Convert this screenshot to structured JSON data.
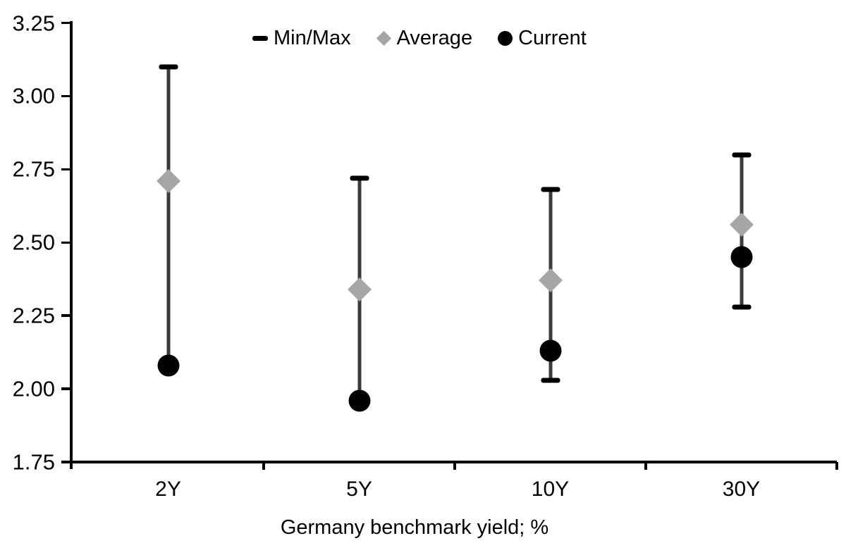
{
  "chart_data": {
    "type": "range-dot",
    "title": "",
    "xlabel": "Germany benchmark yield; %",
    "ylabel": "",
    "categories": [
      "2Y",
      "5Y",
      "10Y",
      "30Y"
    ],
    "series": [
      {
        "name": "Min/Max-max",
        "values": [
          3.1,
          2.72,
          2.68,
          2.8
        ]
      },
      {
        "name": "Min/Max-min",
        "values": [
          2.08,
          1.96,
          2.03,
          2.28
        ]
      },
      {
        "name": "Average",
        "values": [
          2.71,
          2.34,
          2.37,
          2.56
        ]
      },
      {
        "name": "Current",
        "values": [
          2.08,
          1.96,
          2.13,
          2.45
        ]
      }
    ],
    "ylim": [
      1.75,
      3.25
    ],
    "yticks": [
      3.25,
      3.0,
      2.75,
      2.5,
      2.25,
      2.0,
      1.75
    ],
    "grid": "off",
    "legend_position": "top-center",
    "legend": [
      {
        "label": "Min/Max",
        "marker": "dash"
      },
      {
        "label": "Average",
        "marker": "diamond"
      },
      {
        "label": "Current",
        "marker": "circle"
      }
    ],
    "colors": {
      "minmax": "#000000",
      "whisker": "#3b3b3b",
      "average": "#a6a6a6",
      "current": "#000000",
      "axis": "#000000",
      "text": "#000000"
    }
  }
}
